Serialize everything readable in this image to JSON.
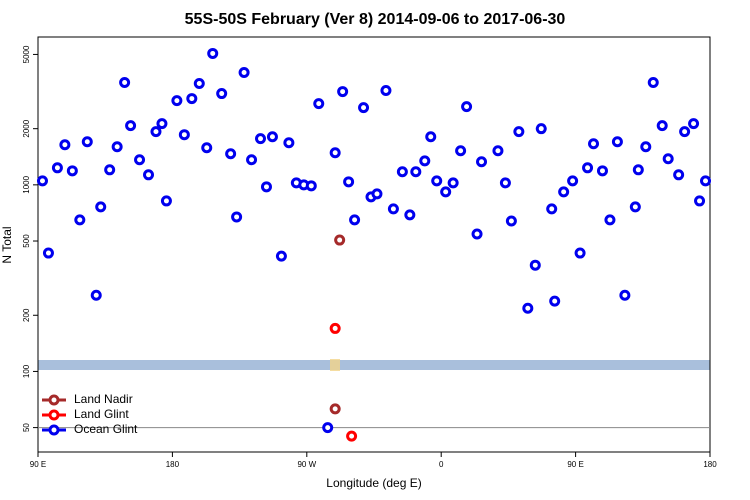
{
  "chart_data": {
    "type": "scatter",
    "title": "55S-50S February (Ver 8)   2014-09-06 to 2017-06-30",
    "x_label": "Longitude (deg E)",
    "y_label": "N Total",
    "xlim": [
      90,
      540
    ],
    "xticks": [
      {
        "value": 90,
        "label": "90 E"
      },
      180,
      {
        "value": 270,
        "label": "90 W"
      },
      {
        "value": 360,
        "label": "0"
      },
      {
        "value": 450,
        "label": "90 E"
      },
      {
        "value": 540,
        "label": "180"
      }
    ],
    "yscale": "log",
    "ylim": [
      37,
      6200
    ],
    "yticks": [
      50,
      100,
      200,
      500,
      1000,
      2000,
      5000
    ],
    "reference_line": 50,
    "legend": "lower left",
    "series": [
      {
        "name": "Land Nadir",
        "color": "#a52a2a",
        "x": [
          292,
          289
        ],
        "values": [
          506,
          63
        ]
      },
      {
        "name": "Land Glint",
        "color": "#ff0000",
        "x": [
          289,
          300
        ],
        "values": [
          170,
          45
        ]
      },
      {
        "name": "Ocean Glint",
        "color": "#0000ee",
        "x": [
          93,
          97,
          103,
          108,
          113,
          118,
          123,
          129,
          132,
          138,
          143,
          148,
          152,
          158,
          164,
          169,
          173,
          176,
          183,
          188,
          193,
          198,
          203,
          207,
          213,
          219,
          223,
          228,
          233,
          239,
          243,
          247,
          253,
          258,
          263,
          268,
          273,
          278,
          284,
          289,
          294,
          298,
          302,
          308,
          313,
          317,
          323,
          328,
          334,
          339,
          343,
          349,
          353,
          357,
          363,
          368,
          373,
          377,
          384,
          387,
          398,
          403,
          407,
          412,
          418,
          423,
          427,
          434,
          436,
          442,
          448,
          453,
          458,
          462,
          468,
          473,
          478,
          483,
          490,
          492,
          497,
          502,
          508,
          512,
          519,
          523,
          529,
          533,
          537
        ],
        "values": [
          1050,
          431,
          1234,
          1641,
          1189,
          649,
          1703,
          256,
          762,
          1204,
          1601,
          3535,
          2076,
          1363,
          1132,
          1928,
          2128,
          820,
          2829,
          1857,
          2900,
          3491,
          1581,
          5061,
          3085,
          1468,
          673,
          4000,
          1363,
          1768,
          976,
          1811,
          415,
          1682,
          1025,
          1000,
          988,
          2725,
          50,
          1486,
          3162,
          1038,
          649,
          2594,
          862,
          895,
          3202,
          743,
          1175,
          690,
          1175,
          1345,
          1811,
          1050,
          917,
          1025,
          1524,
          2627,
          545,
          1330,
          1524,
          1025,
          640,
          1928,
          218,
          371,
          2000,
          743,
          238,
          917,
          1050,
          431,
          1234,
          1661,
          1189,
          649,
          1703,
          256,
          762,
          1204,
          1601,
          3535,
          2076,
          1380,
          1132,
          1928,
          2128,
          820,
          1050
        ]
      }
    ]
  }
}
